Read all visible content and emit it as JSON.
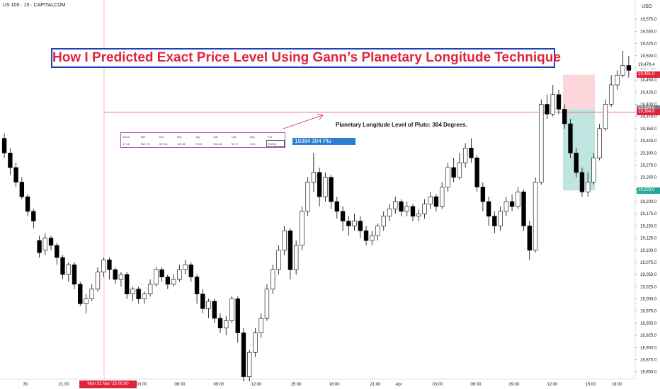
{
  "header": {
    "symbol": "US 100 · 15 · CAPITALCOM",
    "currency": "USD",
    "headline": "How I Predicted Exact Price Level Using Gann’s Planetary Longitude Technique"
  },
  "annotation": "Planetary Longitude Level of Pluto: 304 Degrees.",
  "pluto_label": "19384  304 Plu",
  "planet_table": {
    "headers": [
      "Moon",
      "Mer",
      "Ven",
      "Mar",
      "Jup",
      "Sat",
      "Ura",
      "Nep",
      "Plu"
    ],
    "values": [
      "47.36",
      "359.76",
      "357.54",
      "113.81",
      "75.59",
      "354.48",
      "54.77",
      "0.00",
      "303.55"
    ],
    "highlight_index": 8
  },
  "price_tags": [
    {
      "label": "19,479.4",
      "color": "#ffffff",
      "text_color": "#131722",
      "value": 19479.4
    },
    {
      "label": "19,461.0",
      "color": "#e0243b",
      "text_color": "#ffffff",
      "value": 19461.0
    },
    {
      "label": "19,390.6",
      "color": "#787b86",
      "text_color": "#ffffff",
      "value": 19390.6
    },
    {
      "label": "19,384.6",
      "color": "#e0243b",
      "text_color": "#ffffff",
      "value": 19384.6
    },
    {
      "label": "19,223.0",
      "color": "#26a69a",
      "text_color": "#ffffff",
      "value": 19223.0
    }
  ],
  "time_tag": "Mon 31 Mar '25   00:00",
  "colors": {
    "candle": "#000000",
    "hline": "#f06b7b",
    "vline": "#f4a6b0",
    "arrow": "#e0243b",
    "stop_zone": "#f9c9cf",
    "target_zone": "#a8dcd5",
    "grid": "#ffffff"
  },
  "chart_data": {
    "type": "candlestick",
    "title": "",
    "ylim": [
      18835,
      19600
    ],
    "y_ticks": [
      "19,575.0",
      "19,550.0",
      "19,525.0",
      "19,500.0",
      "19,475.0",
      "19,450.0",
      "19,425.0",
      "19,400.0",
      "19,375.0",
      "19,350.0",
      "19,325.0",
      "19,300.0",
      "19,275.0",
      "19,250.0",
      "19,225.0",
      "19,200.0",
      "19,175.0",
      "19,150.0",
      "19,125.0",
      "19,100.0",
      "19,075.0",
      "19,050.0",
      "19,025.0",
      "19,000.0",
      "18,975.0",
      "18,950.0",
      "18,925.0",
      "18,900.0",
      "18,875.0",
      "18,850.0"
    ],
    "x_ticks": [
      "30",
      "21:00",
      "03:00",
      "06:00",
      "09:00",
      "12:00",
      "15:00",
      "18:00",
      "21:00",
      "Apr",
      "03:00",
      "06:00",
      "09:00",
      "12:00",
      "15:00",
      "18:00"
    ],
    "pluto_level": 19384,
    "candles": [
      [
        19330,
        19300,
        19340,
        19290
      ],
      [
        19300,
        19270,
        19310,
        19255
      ],
      [
        19270,
        19240,
        19280,
        19230
      ],
      [
        19240,
        19210,
        19250,
        19205
      ],
      [
        19210,
        19180,
        19215,
        19170
      ],
      [
        19180,
        19160,
        19185,
        19145
      ],
      [
        19120,
        19095,
        19130,
        19085
      ],
      [
        19100,
        19125,
        19135,
        19090
      ],
      [
        19125,
        19110,
        19130,
        19100
      ],
      [
        19110,
        19085,
        19115,
        19070
      ],
      [
        19085,
        19050,
        19090,
        19040
      ],
      [
        19050,
        19070,
        19075,
        19035
      ],
      [
        19070,
        19030,
        19075,
        19020
      ],
      [
        19030,
        18990,
        19035,
        18985
      ],
      [
        18990,
        19000,
        19010,
        18970
      ],
      [
        19000,
        19020,
        19030,
        18995
      ],
      [
        19020,
        19055,
        19065,
        19015
      ],
      [
        19055,
        19080,
        19085,
        19045
      ],
      [
        19080,
        19060,
        19085,
        19040
      ],
      [
        19060,
        19040,
        19065,
        19030
      ],
      [
        19040,
        19050,
        19055,
        19025
      ],
      [
        19050,
        19010,
        19055,
        19000
      ],
      [
        19010,
        19020,
        19025,
        18995
      ],
      [
        19020,
        19000,
        19025,
        18990
      ],
      [
        19000,
        19010,
        19015,
        18990
      ],
      [
        19010,
        19030,
        19040,
        19005
      ],
      [
        19030,
        19060,
        19065,
        19025
      ],
      [
        19060,
        19045,
        19065,
        19035
      ],
      [
        19045,
        19030,
        19050,
        19020
      ],
      [
        19030,
        19040,
        19050,
        19025
      ],
      [
        19040,
        19060,
        19070,
        19035
      ],
      [
        19060,
        19070,
        19080,
        19050
      ],
      [
        19070,
        19045,
        19075,
        19035
      ],
      [
        19045,
        19010,
        19050,
        18990
      ],
      [
        19010,
        18980,
        19020,
        18970
      ],
      [
        18980,
        18995,
        19000,
        18960
      ],
      [
        18995,
        18960,
        19000,
        18950
      ],
      [
        18960,
        18940,
        18970,
        18930
      ],
      [
        18940,
        18955,
        18965,
        18925
      ],
      [
        18955,
        19000,
        19005,
        18950
      ],
      [
        19000,
        18930,
        19005,
        18910
      ],
      [
        18930,
        18840,
        18940,
        18830
      ],
      [
        18840,
        18890,
        18895,
        18830
      ],
      [
        18890,
        18930,
        18940,
        18880
      ],
      [
        18930,
        18960,
        18970,
        18920
      ],
      [
        18960,
        19020,
        19030,
        18955
      ],
      [
        19020,
        19060,
        19070,
        19010
      ],
      [
        19060,
        19100,
        19110,
        19050
      ],
      [
        19100,
        19140,
        19150,
        19090
      ],
      [
        19140,
        19060,
        19145,
        19040
      ],
      [
        19060,
        19110,
        19120,
        19050
      ],
      [
        19110,
        19180,
        19190,
        19100
      ],
      [
        19180,
        19240,
        19250,
        19170
      ],
      [
        19240,
        19260,
        19300,
        19220
      ],
      [
        19260,
        19210,
        19270,
        19190
      ],
      [
        19210,
        19250,
        19260,
        19200
      ],
      [
        19250,
        19200,
        19255,
        19185
      ],
      [
        19200,
        19180,
        19210,
        19165
      ],
      [
        19180,
        19160,
        19190,
        19140
      ],
      [
        19160,
        19150,
        19170,
        19130
      ],
      [
        19150,
        19160,
        19175,
        19140
      ],
      [
        19160,
        19140,
        19170,
        19125
      ],
      [
        19140,
        19120,
        19150,
        19110
      ],
      [
        19120,
        19130,
        19140,
        19110
      ],
      [
        19130,
        19150,
        19155,
        19120
      ],
      [
        19150,
        19170,
        19180,
        19140
      ],
      [
        19170,
        19185,
        19195,
        19160
      ],
      [
        19185,
        19200,
        19210,
        19175
      ],
      [
        19200,
        19180,
        19205,
        19170
      ],
      [
        19180,
        19190,
        19200,
        19170
      ],
      [
        19190,
        19170,
        19195,
        19160
      ],
      [
        19170,
        19175,
        19185,
        19160
      ],
      [
        19175,
        19195,
        19205,
        19165
      ],
      [
        19195,
        19210,
        19220,
        19185
      ],
      [
        19210,
        19190,
        19215,
        19180
      ],
      [
        19190,
        19230,
        19240,
        19185
      ],
      [
        19230,
        19270,
        19280,
        19220
      ],
      [
        19270,
        19250,
        19290,
        19240
      ],
      [
        19250,
        19280,
        19300,
        19245
      ],
      [
        19280,
        19310,
        19320,
        19270
      ],
      [
        19310,
        19290,
        19330,
        19280
      ],
      [
        19290,
        19230,
        19295,
        19220
      ],
      [
        19230,
        19200,
        19240,
        19180
      ],
      [
        19200,
        19170,
        19210,
        19150
      ],
      [
        19170,
        19150,
        19180,
        19135
      ],
      [
        19150,
        19180,
        19190,
        19140
      ],
      [
        19180,
        19200,
        19210,
        19170
      ],
      [
        19200,
        19190,
        19215,
        19180
      ],
      [
        19190,
        19220,
        19230,
        19185
      ],
      [
        19220,
        19150,
        19225,
        19140
      ],
      [
        19150,
        19100,
        19160,
        19080
      ],
      [
        19100,
        19240,
        19250,
        19095
      ],
      [
        19240,
        19400,
        19410,
        19235
      ],
      [
        19400,
        19380,
        19420,
        19370
      ],
      [
        19380,
        19420,
        19440,
        19375
      ],
      [
        19420,
        19390,
        19430,
        19380
      ],
      [
        19390,
        19360,
        19400,
        19350
      ],
      [
        19360,
        19300,
        19370,
        19290
      ],
      [
        19300,
        19260,
        19310,
        19250
      ],
      [
        19260,
        19220,
        19270,
        19210
      ],
      [
        19220,
        19240,
        19260,
        19210
      ],
      [
        19240,
        19290,
        19300,
        19235
      ],
      [
        19290,
        19350,
        19360,
        19285
      ],
      [
        19350,
        19400,
        19410,
        19345
      ],
      [
        19400,
        19440,
        19460,
        19395
      ],
      [
        19440,
        19460,
        19470,
        19430
      ],
      [
        19460,
        19480,
        19510,
        19455
      ],
      [
        19480,
        19470,
        19500,
        19455
      ]
    ],
    "stop_zone": [
      19390,
      19461
    ],
    "target_zone": [
      19223,
      19390
    ]
  }
}
